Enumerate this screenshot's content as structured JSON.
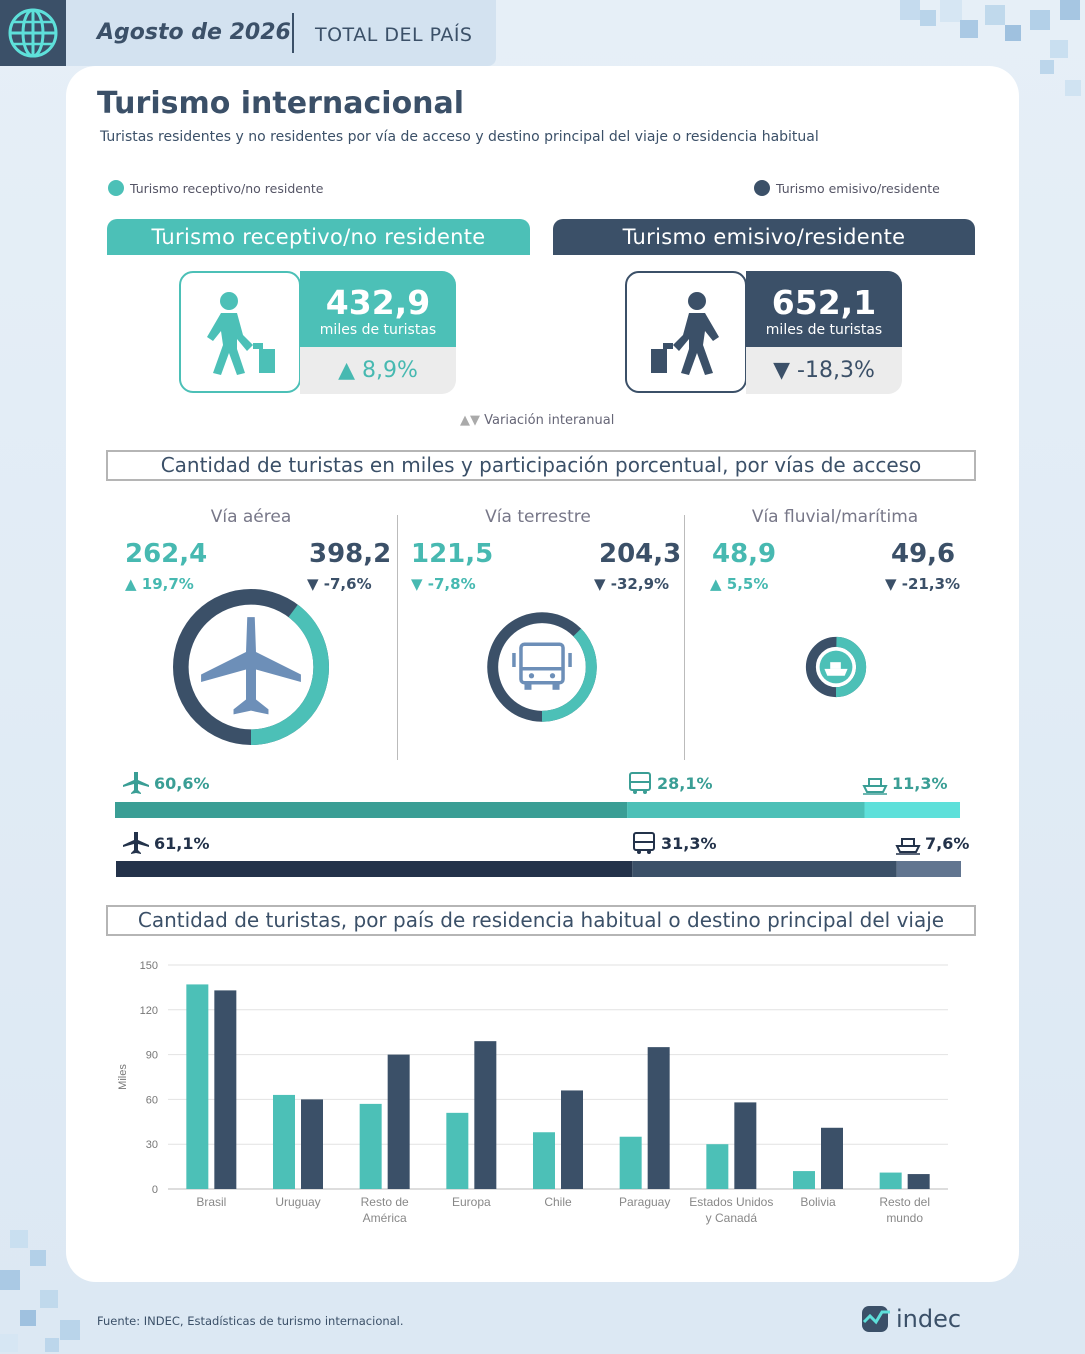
{
  "header": {
    "date": "Agosto de 2026",
    "scope": "TOTAL DEL PAÍS"
  },
  "title": "Turismo internacional",
  "subtitle": "Turistas residentes y no residentes por vía de acceso y destino principal del viaje o residencia habitual",
  "legend": {
    "receptivo": "Turismo receptivo/no residente",
    "emisivo": "Turismo emisivo/residente"
  },
  "colors": {
    "teal": "#4cc0b7",
    "navy": "#3b5068",
    "dark": "#23324a"
  },
  "receptivo": {
    "banner": "Turismo receptivo/no residente",
    "value": "432,9",
    "unit": "miles de turistas",
    "change": "8,9%"
  },
  "emisivo": {
    "banner": "Turismo emisivo/residente",
    "value": "652,1",
    "unit": "miles de turistas",
    "change": "-18,3%"
  },
  "variacion_note": "Variación interanual",
  "section_vias": "Cantidad de turistas en miles y participación porcentual, por vías de acceso",
  "vias": [
    {
      "name": "Vía aérea",
      "rec": "262,4",
      "rec_chg": "19,7%",
      "emi": "398,2",
      "emi_chg": "-7,6%",
      "rec_val": 262.4,
      "emi_val": 398.2,
      "icon": "plane-icon"
    },
    {
      "name": "Vía terrestre",
      "rec": "121,5",
      "rec_chg": "-7,8%",
      "emi": "204,3",
      "emi_chg": "-32,9%",
      "rec_val": 121.5,
      "emi_val": 204.3,
      "icon": "bus-icon"
    },
    {
      "name": "Vía fluvial/marítima",
      "rec": "48,9",
      "rec_chg": "5,5%",
      "emi": "49,6",
      "emi_chg": "-21,3%",
      "rec_val": 48.9,
      "emi_val": 49.6,
      "icon": "ship-icon"
    }
  ],
  "share_bars": {
    "receptivo": [
      {
        "label": "60,6%",
        "value": 60.6,
        "color": "#3a9e95"
      },
      {
        "label": "28,1%",
        "value": 28.1,
        "color": "#4cc0b7"
      },
      {
        "label": "11,3%",
        "value": 11.3,
        "color": "#5ee0da"
      }
    ],
    "emisivo": [
      {
        "label": "61,1%",
        "value": 61.1,
        "color": "#23324a"
      },
      {
        "label": "31,3%",
        "value": 31.3,
        "color": "#3b5068"
      },
      {
        "label": "7,6%",
        "value": 7.6,
        "color": "#617590"
      }
    ]
  },
  "section_paises": "Cantidad de turistas, por país de residencia habitual o destino principal del viaje",
  "chart_data": {
    "type": "bar",
    "ylabel": "Miles",
    "ylim": [
      0,
      150
    ],
    "yticks": [
      "0",
      "30",
      "60",
      "90",
      "120",
      "150"
    ],
    "categories": [
      [
        "Brasil"
      ],
      [
        "Uruguay"
      ],
      [
        "Resto de",
        "América"
      ],
      [
        "Europa"
      ],
      [
        "Chile"
      ],
      [
        "Paraguay"
      ],
      [
        "Estados Unidos",
        "y Canadá"
      ],
      [
        "Bolivia"
      ],
      [
        "Resto del",
        "mundo"
      ]
    ],
    "series": [
      {
        "values": [
          137,
          63,
          57,
          51,
          38,
          35,
          30,
          12,
          11
        ],
        "color": "#4cc0b7"
      },
      {
        "values": [
          133,
          60,
          90,
          99,
          66,
          95,
          58,
          41,
          10
        ],
        "color": "#3b5068"
      }
    ]
  },
  "footer": "Fuente: INDEC, Estadísticas de turismo internacional.",
  "logo": "indec"
}
